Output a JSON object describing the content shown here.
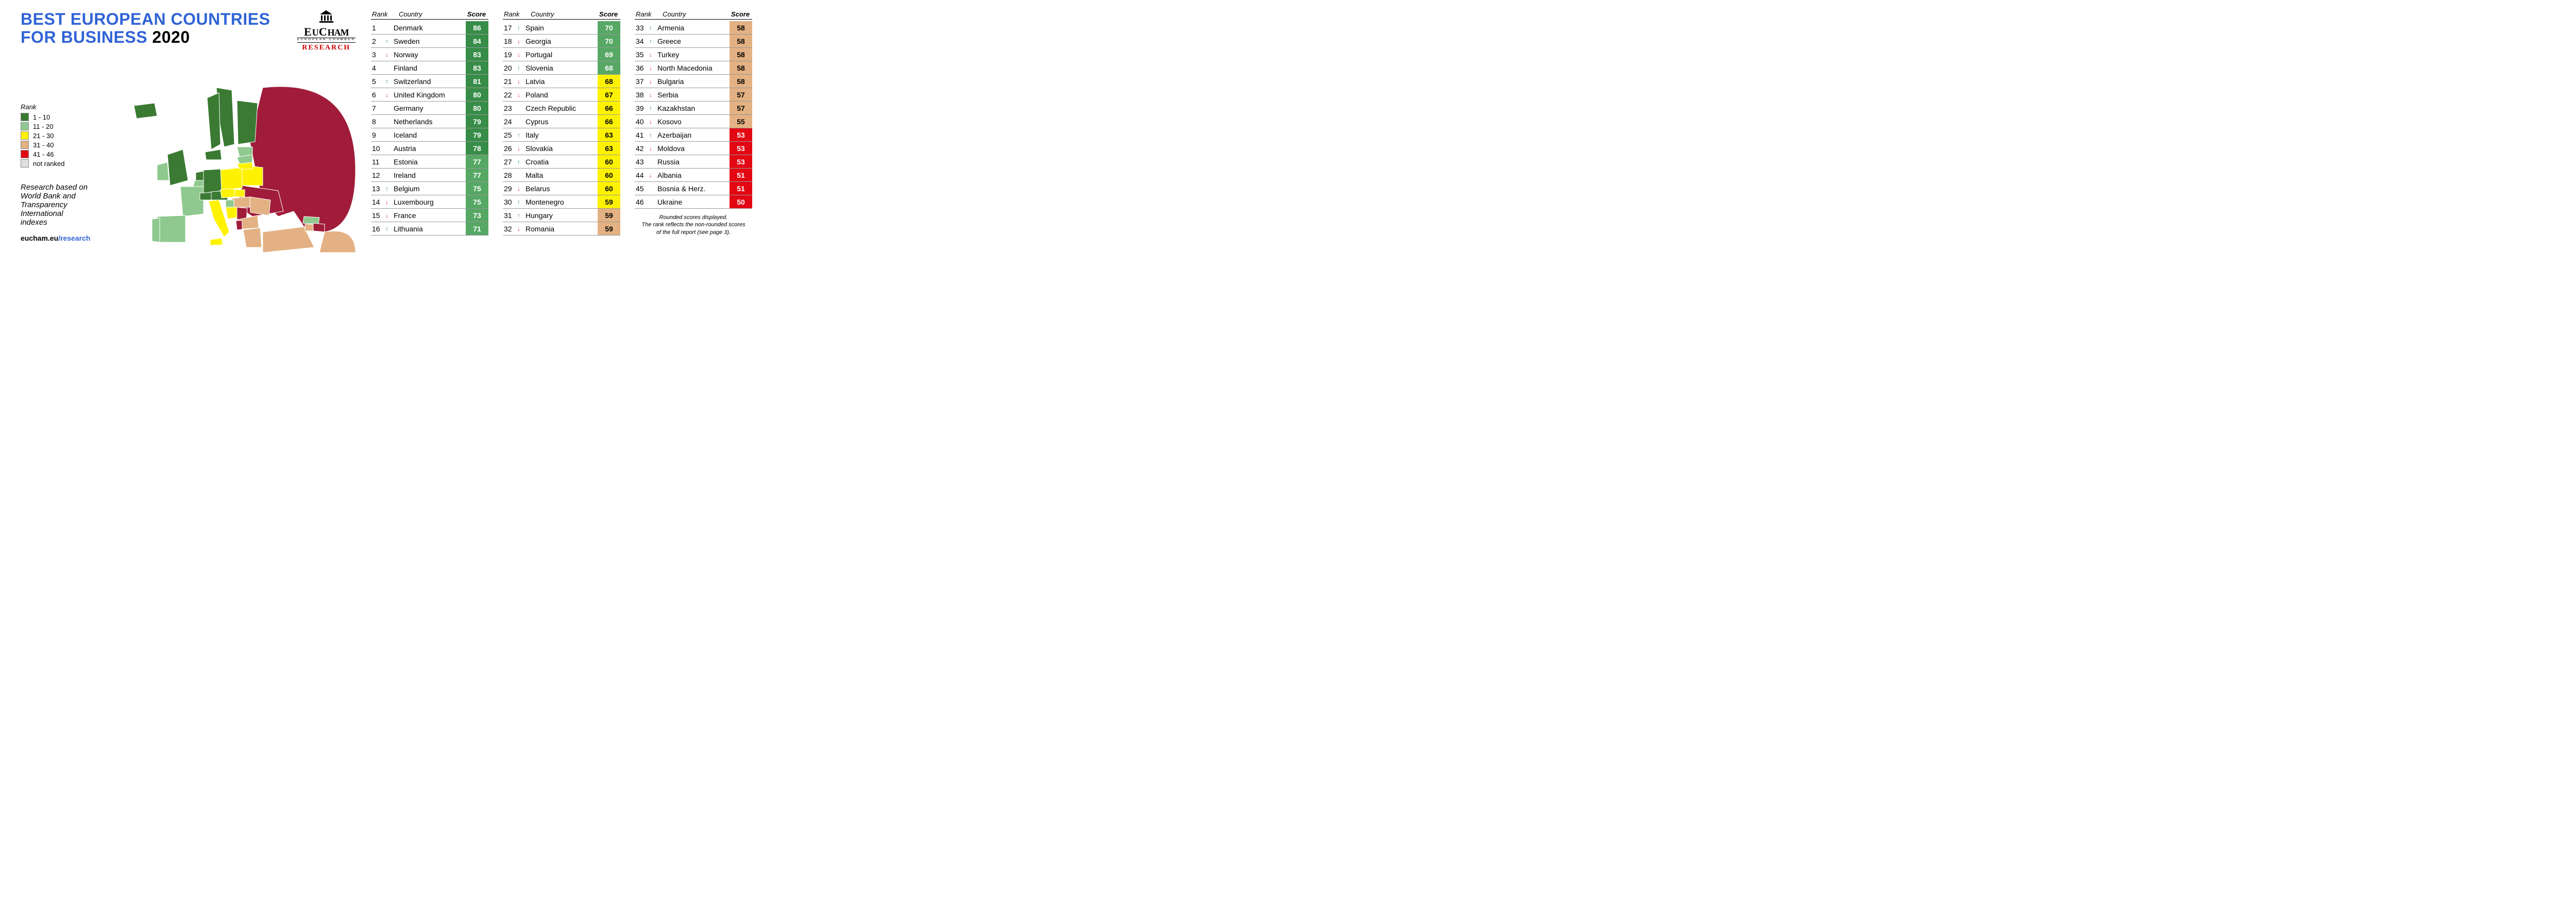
{
  "title": {
    "line1": "BEST EUROPEAN COUNTRIES",
    "line2": "FOR BUSINESS",
    "year": "2020"
  },
  "logo": {
    "name": "EuCham",
    "sub": "EUROPEAN CHAMBER",
    "research": "RESEARCH"
  },
  "legend": {
    "title": "Rank",
    "items": [
      {
        "label": "1 - 10",
        "color": "#3a7a32"
      },
      {
        "label": "11 - 20",
        "color": "#8fc98f"
      },
      {
        "label": "21 - 30",
        "color": "#fff200"
      },
      {
        "label": "31 - 40",
        "color": "#e3b183"
      },
      {
        "label": "41 - 46",
        "color": "#e30613"
      },
      {
        "label": "not ranked",
        "color": "#e0e0e0"
      }
    ]
  },
  "note": {
    "l1": "Research based on",
    "l2": "World Bank and",
    "l3": "Transparency International",
    "l4": "indexes"
  },
  "url": {
    "base": "eucham.eu",
    "path": "/research"
  },
  "headers": {
    "rank": "Rank",
    "country": "Country",
    "score": "Score"
  },
  "footnote": {
    "l1": "Rounded scores displayed.",
    "l2": "The rank reflects the non-rounded scores",
    "l3": "of the full report (see page 3)."
  },
  "columns": [
    [
      {
        "rank": "1",
        "arrow": "",
        "country": "Denmark",
        "score": "86",
        "tier": "green-dark"
      },
      {
        "rank": "2",
        "arrow": "up",
        "country": "Sweden",
        "score": "84",
        "tier": "green-dark"
      },
      {
        "rank": "3",
        "arrow": "down",
        "country": "Norway",
        "score": "83",
        "tier": "green-dark"
      },
      {
        "rank": "4",
        "arrow": "",
        "country": "Finland",
        "score": "83",
        "tier": "green-dark"
      },
      {
        "rank": "5",
        "arrow": "up",
        "country": "Switzerland",
        "score": "81",
        "tier": "green-dark"
      },
      {
        "rank": "6",
        "arrow": "down",
        "country": "United Kingdom",
        "score": "80",
        "tier": "green-dark"
      },
      {
        "rank": "7",
        "arrow": "",
        "country": "Germany",
        "score": "80",
        "tier": "green-dark"
      },
      {
        "rank": "8",
        "arrow": "",
        "country": "Netherlands",
        "score": "79",
        "tier": "green-dark"
      },
      {
        "rank": "9",
        "arrow": "",
        "country": "Iceland",
        "score": "79",
        "tier": "green-dark"
      },
      {
        "rank": "10",
        "arrow": "",
        "country": "Austria",
        "score": "78",
        "tier": "green-dark"
      },
      {
        "rank": "11",
        "arrow": "",
        "country": "Estonia",
        "score": "77",
        "tier": "green-light"
      },
      {
        "rank": "12",
        "arrow": "",
        "country": "Ireland",
        "score": "77",
        "tier": "green-light"
      },
      {
        "rank": "13",
        "arrow": "up",
        "country": "Belgium",
        "score": "75",
        "tier": "green-light"
      },
      {
        "rank": "14",
        "arrow": "down",
        "country": "Luxembourg",
        "score": "75",
        "tier": "green-light"
      },
      {
        "rank": "15",
        "arrow": "down",
        "country": "France",
        "score": "73",
        "tier": "green-light"
      },
      {
        "rank": "16",
        "arrow": "up",
        "country": "Lithuania",
        "score": "71",
        "tier": "green-light"
      }
    ],
    [
      {
        "rank": "17",
        "arrow": "up",
        "country": "Spain",
        "score": "70",
        "tier": "green-light"
      },
      {
        "rank": "18",
        "arrow": "down",
        "country": "Georgia",
        "score": "70",
        "tier": "green-light"
      },
      {
        "rank": "19",
        "arrow": "down",
        "country": "Portugal",
        "score": "69",
        "tier": "green-light"
      },
      {
        "rank": "20",
        "arrow": "up",
        "country": "Slovenia",
        "score": "68",
        "tier": "green-light"
      },
      {
        "rank": "21",
        "arrow": "down",
        "country": "Latvia",
        "score": "68",
        "tier": "yellow"
      },
      {
        "rank": "22",
        "arrow": "down",
        "country": "Poland",
        "score": "67",
        "tier": "yellow"
      },
      {
        "rank": "23",
        "arrow": "",
        "country": "Czech Republic",
        "score": "66",
        "tier": "yellow"
      },
      {
        "rank": "24",
        "arrow": "",
        "country": "Cyprus",
        "score": "66",
        "tier": "yellow"
      },
      {
        "rank": "25",
        "arrow": "up",
        "country": "Italy",
        "score": "63",
        "tier": "yellow"
      },
      {
        "rank": "26",
        "arrow": "down",
        "country": "Slovakia",
        "score": "63",
        "tier": "yellow"
      },
      {
        "rank": "27",
        "arrow": "up",
        "country": "Croatia",
        "score": "60",
        "tier": "yellow"
      },
      {
        "rank": "28",
        "arrow": "",
        "country": "Malta",
        "score": "60",
        "tier": "yellow"
      },
      {
        "rank": "29",
        "arrow": "down",
        "country": "Belarus",
        "score": "60",
        "tier": "yellow"
      },
      {
        "rank": "30",
        "arrow": "up",
        "country": "Montenegro",
        "score": "59",
        "tier": "yellow"
      },
      {
        "rank": "31",
        "arrow": "up",
        "country": "Hungary",
        "score": "59",
        "tier": "orange"
      },
      {
        "rank": "32",
        "arrow": "down",
        "country": "Romania",
        "score": "59",
        "tier": "orange"
      }
    ],
    [
      {
        "rank": "33",
        "arrow": "up",
        "country": "Armenia",
        "score": "58",
        "tier": "orange"
      },
      {
        "rank": "34",
        "arrow": "up",
        "country": "Greece",
        "score": "58",
        "tier": "orange"
      },
      {
        "rank": "35",
        "arrow": "down",
        "country": "Turkey",
        "score": "58",
        "tier": "orange"
      },
      {
        "rank": "36",
        "arrow": "down",
        "country": "North Macedonia",
        "score": "58",
        "tier": "orange"
      },
      {
        "rank": "37",
        "arrow": "down",
        "country": "Bulgaria",
        "score": "58",
        "tier": "orange"
      },
      {
        "rank": "38",
        "arrow": "down",
        "country": "Serbia",
        "score": "57",
        "tier": "orange"
      },
      {
        "rank": "39",
        "arrow": "up",
        "country": "Kazakhstan",
        "score": "57",
        "tier": "orange"
      },
      {
        "rank": "40",
        "arrow": "down",
        "country": "Kosovo",
        "score": "55",
        "tier": "orange"
      },
      {
        "rank": "41",
        "arrow": "up",
        "country": "Azerbaijan",
        "score": "53",
        "tier": "red"
      },
      {
        "rank": "42",
        "arrow": "down",
        "country": "Moldova",
        "score": "53",
        "tier": "red"
      },
      {
        "rank": "43",
        "arrow": "",
        "country": "Russia",
        "score": "53",
        "tier": "red"
      },
      {
        "rank": "44",
        "arrow": "down",
        "country": "Albania",
        "score": "51",
        "tier": "red"
      },
      {
        "rank": "45",
        "arrow": "",
        "country": "Bosnia & Herz.",
        "score": "51",
        "tier": "red"
      },
      {
        "rank": "46",
        "arrow": "",
        "country": "Ukraine",
        "score": "50",
        "tier": "red"
      }
    ]
  ],
  "map": {
    "colors": {
      "tier1": "#3a7a32",
      "tier2": "#8fc98f",
      "tier3": "#fff200",
      "tier4": "#e3b183",
      "tier5": "#a01c3a",
      "stroke": "#ffffff"
    }
  }
}
